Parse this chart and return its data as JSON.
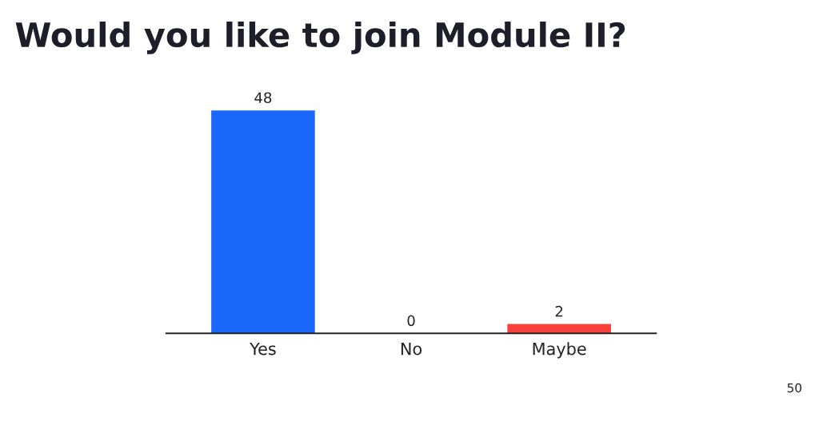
{
  "chart_data": {
    "type": "bar",
    "title": "Would you like to join Module II?",
    "categories": [
      "Yes",
      "No",
      "Maybe"
    ],
    "values": [
      48,
      0,
      2
    ],
    "colors": [
      "#1b66fb",
      null,
      "#f9403d"
    ],
    "data_labels": true,
    "annotations": [
      "50"
    ],
    "grid": false,
    "legend": false
  }
}
